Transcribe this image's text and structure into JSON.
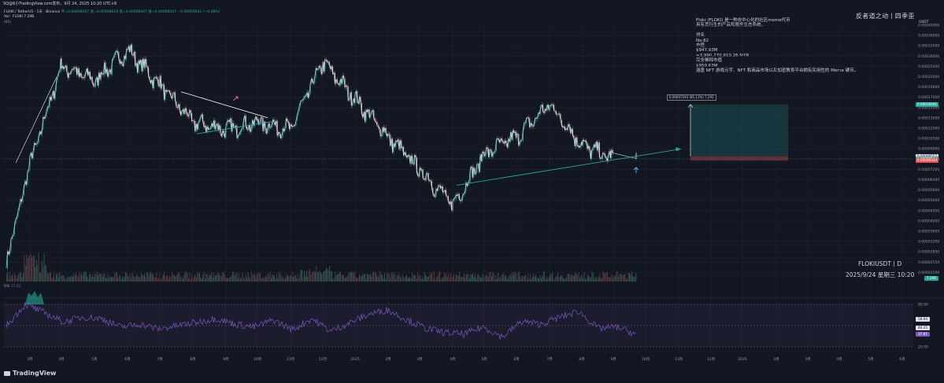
{
  "topbar": {
    "text": "SQ@6小TradingView.com发布，9月 24, 2025 10:20 UTC+8"
  },
  "legend": {
    "symbol_line": "FLOKI / TetherUS · 1天 · Binance",
    "ohlc": "开=0.00008567 高=0.00008619 低=0.00008407 收=0.00008547 −0.00000041 (−0.48%)",
    "vol": "Vol · FLOKI  7.29B",
    "extra": "(82)"
  },
  "header": {
    "currency": "USDT",
    "brand": "反者道之动丨四季歪"
  },
  "info_note": {
    "lines": [
      "Floki (FLOKI) 是一种去中心化的社区meme代币",
      "具有其衍生的产品和服务生态系统。",
      "",
      "排名",
      "No.82",
      "市值",
      "$947.93M",
      "≈3,990,770,910.26 MYR",
      "完全稀释市值",
      "$959.63M",
      "涵盖 NFT 游戏元宇、NFT 和商品市场以及加密教育平台拥有实用性的 Meme 硬币。"
    ]
  },
  "footer": {
    "symbol_interval": "FLOKIUSDT丨D",
    "datetime": "2025/9/24 星期三 10:20",
    "brand": "TradingView"
  },
  "measure": {
    "label": "0.00007293 (85.11%) 7,293"
  },
  "price_tags": [
    {
      "value": "0.00016001",
      "color": "#26a69a",
      "price": 0.00016001
    },
    {
      "value": "0.00008553",
      "color": "#e0e3eb",
      "price": 8.78e-05
    },
    {
      "value": "0.00008547",
      "color": "#26a69a",
      "price": 8.547e-05
    },
    {
      "value": "0.00008344",
      "color": "#ef5350",
      "price": 8.344e-05
    }
  ],
  "vol_tag": {
    "value": "7.29B",
    "color": "#26a69a"
  },
  "rsi_legend": {
    "label": "RSI",
    "value": "37.81"
  },
  "rsi_tags": [
    {
      "value": "58.94",
      "color": "#e0e3eb",
      "level": 58.94
    },
    {
      "value": "46.25",
      "color": "#e0e3eb",
      "level": 46.25
    },
    {
      "value": "37.81",
      "color": "#7e57c2",
      "level": 37.81
    }
  ],
  "chart_data": {
    "type": "line",
    "title": "",
    "xlabel": "",
    "ylabel": "",
    "x_ticks": [
      "3月",
      "4月",
      "5月",
      "6月",
      "7月",
      "8月",
      "9月",
      "10月",
      "11月",
      "12月",
      "2025",
      "2月",
      "3月",
      "4月",
      "5月",
      "6月",
      "7月",
      "8月",
      "9月",
      "10月",
      "11月",
      "12月",
      "2026",
      "2月",
      "3月",
      "4月",
      "5月",
      "6月"
    ],
    "y_ticks": [
      "0.00040000",
      "0.00036000",
      "0.00032000",
      "0.00028000",
      "0.00025000",
      "0.00022000",
      "0.00019000",
      "0.00017000",
      "0.00015000",
      "0.00013000",
      "0.00012000",
      "0.00010500",
      "0.00009000",
      "0.00008000",
      "0.00007200",
      "0.00006400",
      "0.00005600",
      "0.00005000",
      "0.00004500",
      "0.00004000",
      "0.00003600",
      "0.00003200",
      "0.00002850",
      "0.00002550",
      "0.00002290"
    ],
    "price_scale": "log",
    "series": [
      {
        "x": [
          "3月",
          "4月",
          "5月",
          "6月",
          "7月",
          "8月",
          "9月",
          "10月",
          "11月",
          "12月",
          "2025",
          "2月",
          "3月",
          "4月",
          "5月",
          "6月",
          "7月",
          "8月",
          "9月"
        ],
        "values": [
          8e-05,
          0.00025,
          0.00021,
          0.0003,
          0.0002,
          0.00013,
          0.00012,
          0.00013,
          0.00012,
          0.00026,
          0.00017,
          0.00011,
          7.5e-05,
          5e-05,
          9e-05,
          0.00011,
          0.00016,
          0.0001,
          8.5e-05
        ]
      }
    ],
    "rsi": {
      "y_ticks": [
        "80.00",
        "20.00"
      ],
      "values": [
        50,
        80,
        68,
        55,
        62,
        60,
        48,
        52,
        45,
        50,
        55,
        60,
        52,
        48,
        58,
        44,
        60,
        42,
        54,
        66,
        72,
        58,
        46,
        40,
        38,
        48,
        34,
        56,
        52,
        62,
        70,
        46,
        48,
        38
      ]
    },
    "grid": true
  }
}
